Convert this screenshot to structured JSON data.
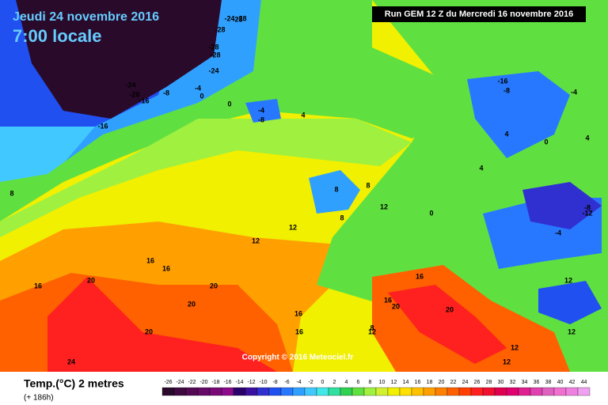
{
  "header": {
    "date": "Jeudi 24 novembre 2016",
    "time": "7:00 locale",
    "run": "Run GEM 12 Z du Mercredi 16 novembre 2016",
    "copyright": "Copyright © 2016 Meteociel.fr"
  },
  "legend": {
    "title": "Temp.(°C) 2 metres",
    "lead": "(+ 186h)",
    "labels": [
      "-26",
      "-24",
      "-22",
      "-20",
      "-18",
      "-16",
      "-14",
      "-12",
      "-10",
      "-8",
      "-6",
      "-4",
      "-2",
      "0",
      "2",
      "4",
      "6",
      "8",
      "10",
      "12",
      "14",
      "16",
      "18",
      "20",
      "22",
      "24",
      "26",
      "28",
      "30",
      "32",
      "34",
      "36",
      "38",
      "40",
      "42",
      "44"
    ],
    "colors": [
      "#2a0a2a",
      "#3f0a3f",
      "#520a52",
      "#650a65",
      "#780a78",
      "#8c0a8c",
      "#2a006a",
      "#3a10a0",
      "#3030d0",
      "#2050f0",
      "#2878ff",
      "#30a0ff",
      "#40c8ff",
      "#40e8e8",
      "#30e0a0",
      "#30d050",
      "#60e040",
      "#a0f040",
      "#d0f030",
      "#f0f000",
      "#ffe000",
      "#ffc000",
      "#ffa000",
      "#ff8000",
      "#ff6000",
      "#ff4000",
      "#ff2020",
      "#f01030",
      "#e00050",
      "#e00070",
      "#e02090",
      "#e040b0",
      "#e060c0",
      "#f070d0",
      "#f080e0",
      "#f0a0f0"
    ]
  },
  "map_labels": [
    "-24",
    "-28",
    "-28",
    "-28",
    "-28",
    "-24",
    "-28",
    "-24",
    "-20",
    "-16",
    "-16",
    "-8",
    "-4",
    "0",
    "0",
    "-4",
    "4",
    "-8",
    "-16",
    "-8",
    "-4",
    "4",
    "0",
    "0",
    "4",
    "4",
    "8",
    "8",
    "12",
    "12",
    "12",
    "8",
    "16",
    "16",
    "20",
    "16",
    "20",
    "20",
    "24",
    "16",
    "16",
    "20",
    "12",
    "8",
    "16",
    "20",
    "16",
    "20",
    "12",
    "12",
    "12",
    "-8",
    "-12",
    "-4",
    "12",
    "8"
  ]
}
